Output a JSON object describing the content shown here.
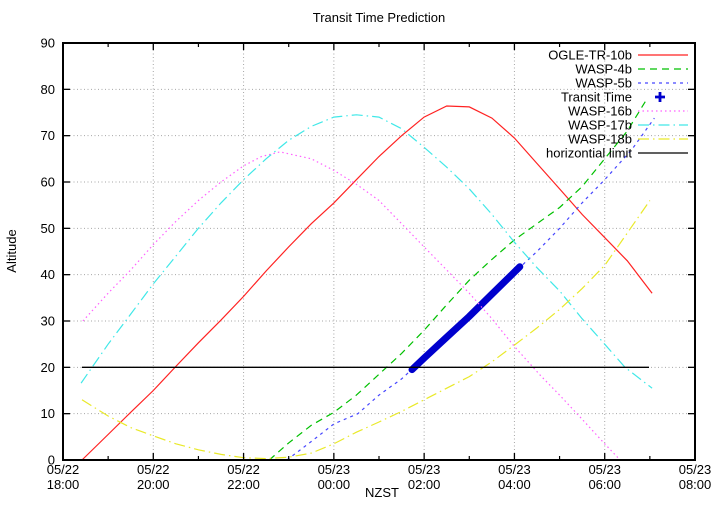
{
  "chart_data": {
    "type": "line",
    "title": "Transit Time Prediction",
    "xlabel": "NZST",
    "ylabel": "Altitude",
    "ylim": [
      0,
      90
    ],
    "x_hours_range": [
      0,
      14
    ],
    "x_axis_note": "t = hours after 05/22 18:00 NZST",
    "grid": true,
    "legend_position": "top-right-inside",
    "x_ticks": [
      {
        "t": 0,
        "date": "05/22",
        "time": "18:00"
      },
      {
        "t": 2,
        "date": "05/22",
        "time": "20:00"
      },
      {
        "t": 4,
        "date": "05/22",
        "time": "22:00"
      },
      {
        "t": 6,
        "date": "05/23",
        "time": "00:00"
      },
      {
        "t": 8,
        "date": "05/23",
        "time": "02:00"
      },
      {
        "t": 10,
        "date": "05/23",
        "time": "04:00"
      },
      {
        "t": 12,
        "date": "05/23",
        "time": "06:00"
      },
      {
        "t": 14,
        "date": "05/23",
        "time": "08:00"
      }
    ],
    "x_minor_ticks": [
      1,
      3,
      5,
      7,
      9,
      11,
      13
    ],
    "y_ticks": [
      0,
      10,
      20,
      30,
      40,
      50,
      60,
      70,
      80,
      90
    ],
    "colors": {
      "grid": "#a6a6a6",
      "axis": "#000000",
      "background": "#ffffff"
    },
    "series": [
      {
        "name": "OGLE-TR-10b",
        "color": "#ff2222",
        "dash_style": "solid",
        "width": 1.2,
        "legend_sample": "line",
        "points": [
          [
            0.42,
            0
          ],
          [
            1,
            5.5
          ],
          [
            1.5,
            10.3
          ],
          [
            2,
            15
          ],
          [
            2.5,
            20.2
          ],
          [
            3,
            25.3
          ],
          [
            3.5,
            30.2
          ],
          [
            4,
            35.3
          ],
          [
            4.5,
            40.8
          ],
          [
            5,
            46
          ],
          [
            5.5,
            51
          ],
          [
            6,
            55.5
          ],
          [
            6.5,
            60.5
          ],
          [
            7,
            65.5
          ],
          [
            7.5,
            70
          ],
          [
            8,
            74
          ],
          [
            8.5,
            76.4
          ],
          [
            9,
            76.2
          ],
          [
            9.5,
            73.8
          ],
          [
            10,
            69.5
          ],
          [
            10.5,
            64
          ],
          [
            11,
            58.5
          ],
          [
            11.5,
            53
          ],
          [
            12,
            48
          ],
          [
            12.5,
            43
          ],
          [
            13.05,
            36
          ]
        ]
      },
      {
        "name": "WASP-4b",
        "color": "#00c000",
        "dash_style": "long-dash",
        "width": 1.2,
        "legend_sample": "line",
        "points": [
          [
            4.57,
            0
          ],
          [
            5,
            3.7
          ],
          [
            5.5,
            7.5
          ],
          [
            6,
            10.3
          ],
          [
            6.5,
            14
          ],
          [
            7,
            18.5
          ],
          [
            7.5,
            23
          ],
          [
            8,
            28
          ],
          [
            8.5,
            33.5
          ],
          [
            9,
            38.8
          ],
          [
            9.5,
            43.3
          ],
          [
            10,
            47.5
          ],
          [
            10.5,
            51
          ],
          [
            11,
            54.5
          ],
          [
            11.5,
            59
          ],
          [
            12,
            65
          ],
          [
            12.5,
            71
          ],
          [
            12.94,
            78
          ]
        ]
      },
      {
        "name": "WASP-5b",
        "color": "#4646ff",
        "dash_style": "short-dash",
        "width": 1.2,
        "legend_sample": "line",
        "points": [
          [
            4.96,
            0
          ],
          [
            5.5,
            4
          ],
          [
            6,
            7.8
          ],
          [
            6.53,
            10
          ],
          [
            7,
            14
          ],
          [
            7.5,
            17.5
          ],
          [
            8,
            22
          ],
          [
            8.5,
            26.5
          ],
          [
            9,
            31
          ],
          [
            9.5,
            35.8
          ],
          [
            10,
            40.5
          ],
          [
            10.5,
            45
          ],
          [
            11,
            50
          ],
          [
            11.5,
            55.5
          ],
          [
            12,
            60.5
          ],
          [
            12.6,
            67
          ],
          [
            13.1,
            73.8
          ]
        ]
      },
      {
        "name": "Transit Time",
        "color": "#0000cd",
        "dash_style": "solid",
        "width": 7,
        "legend_sample": "point",
        "marker": "plus",
        "points": [
          [
            7.73,
            19.5
          ],
          [
            8,
            22
          ],
          [
            8.5,
            26.5
          ],
          [
            9,
            31
          ],
          [
            9.5,
            35.8
          ],
          [
            10.12,
            41.7
          ]
        ]
      },
      {
        "name": "WASP-16b",
        "color": "#ff60ff",
        "dash_style": "dotted",
        "width": 1.2,
        "legend_sample": "line",
        "points": [
          [
            0.44,
            30
          ],
          [
            1,
            36
          ],
          [
            1.5,
            41
          ],
          [
            2,
            46.5
          ],
          [
            2.5,
            51.5
          ],
          [
            3,
            56
          ],
          [
            3.5,
            60
          ],
          [
            4,
            63.5
          ],
          [
            4.4,
            65.5
          ],
          [
            4.81,
            66.5
          ],
          [
            5.5,
            65
          ],
          [
            6,
            62.5
          ],
          [
            6.5,
            59.5
          ],
          [
            7,
            56
          ],
          [
            7.6,
            50
          ],
          [
            8,
            46
          ],
          [
            8.5,
            41
          ],
          [
            9,
            36
          ],
          [
            9.5,
            30.5
          ],
          [
            10,
            24.5
          ],
          [
            10.57,
            18.3
          ],
          [
            11,
            14
          ],
          [
            11.5,
            8.8
          ],
          [
            12,
            3.5
          ],
          [
            12.34,
            0
          ]
        ]
      },
      {
        "name": "WASP-17b",
        "color": "#40e8e8",
        "dash_style": "dash-dot",
        "width": 1.2,
        "legend_sample": "line",
        "points": [
          [
            0.4,
            16.6
          ],
          [
            1,
            25
          ],
          [
            1.5,
            31.5
          ],
          [
            2,
            38
          ],
          [
            2.5,
            44
          ],
          [
            3,
            50
          ],
          [
            3.5,
            55.5
          ],
          [
            4,
            60.5
          ],
          [
            4.5,
            65
          ],
          [
            5,
            69
          ],
          [
            5.5,
            72
          ],
          [
            6,
            74
          ],
          [
            6.5,
            74.5
          ],
          [
            7,
            74
          ],
          [
            7.5,
            71.5
          ],
          [
            8,
            67.5
          ],
          [
            8.5,
            63.2
          ],
          [
            9,
            58.5
          ],
          [
            9.5,
            53
          ],
          [
            10,
            47
          ],
          [
            10.5,
            41.5
          ],
          [
            11,
            36.5
          ],
          [
            11.5,
            30.5
          ],
          [
            12,
            25
          ],
          [
            12.45,
            20
          ],
          [
            13.05,
            15.5
          ]
        ]
      },
      {
        "name": "WASP-18b",
        "color": "#e9e929",
        "dash_style": "dash-dot",
        "width": 1.2,
        "legend_sample": "line",
        "points": [
          [
            0.42,
            13
          ],
          [
            1,
            9.5
          ],
          [
            1.5,
            7
          ],
          [
            2,
            5.2
          ],
          [
            2.5,
            3.5
          ],
          [
            3,
            2.2
          ],
          [
            3.5,
            1.2
          ],
          [
            4,
            0.5
          ],
          [
            4.5,
            0.3
          ],
          [
            5,
            0.6
          ],
          [
            5.5,
            1.5
          ],
          [
            6,
            3.5
          ],
          [
            6.5,
            6
          ],
          [
            7,
            8.2
          ],
          [
            7.5,
            10.5
          ],
          [
            8,
            13
          ],
          [
            8.5,
            15.5
          ],
          [
            9,
            18
          ],
          [
            9.5,
            21.2
          ],
          [
            10,
            24.8
          ],
          [
            10.5,
            28.5
          ],
          [
            11,
            32.5
          ],
          [
            11.5,
            37
          ],
          [
            12,
            42
          ],
          [
            12.5,
            49
          ],
          [
            13,
            56
          ]
        ]
      },
      {
        "name": "horizontial limit",
        "color": "#000000",
        "dash_style": "solid",
        "width": 1.3,
        "legend_sample": "line",
        "points": [
          [
            0.42,
            20
          ],
          [
            12.98,
            20
          ]
        ]
      }
    ]
  }
}
